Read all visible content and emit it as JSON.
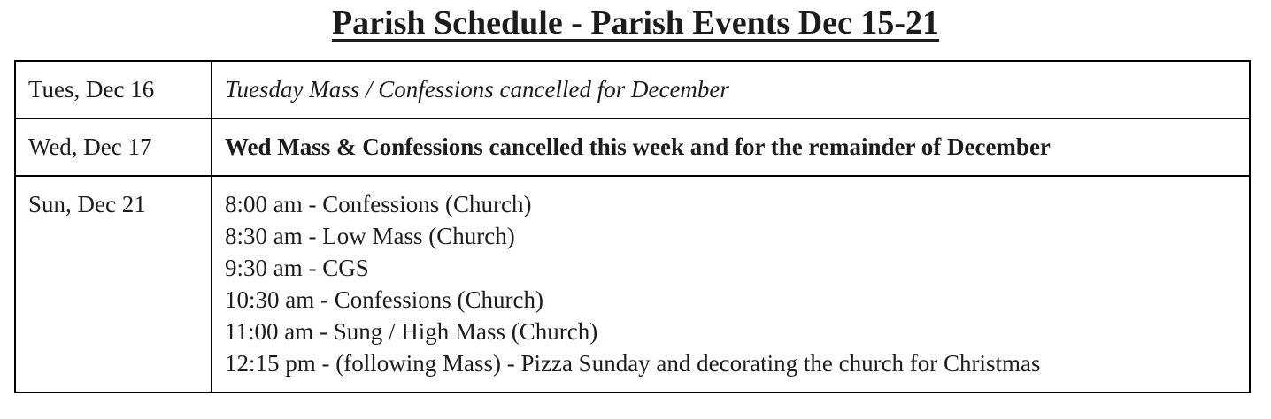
{
  "page": {
    "title": "Parish Schedule - Parish Events Dec 15-21"
  },
  "colors": {
    "text": "#1c1c1c",
    "table_border": "#000000",
    "background": "#ffffff"
  },
  "schedule": {
    "rows": [
      {
        "date": "Tues, Dec 16",
        "style": "italic",
        "lines": [
          "Tuesday Mass / Confessions cancelled for December"
        ]
      },
      {
        "date": "Wed, Dec 17",
        "style": "bold",
        "lines": [
          "Wed Mass & Confessions cancelled this week and for the remainder of December"
        ]
      },
      {
        "date": "Sun, Dec 21",
        "style": "normal",
        "lines": [
          "8:00 am - Confessions (Church)",
          "8:30 am - Low Mass (Church)",
          "9:30 am - CGS",
          "10:30 am - Confessions (Church)",
          "11:00 am - Sung / High Mass (Church)",
          "12:15 pm - (following Mass) - Pizza Sunday and decorating the church for Christmas"
        ]
      }
    ]
  }
}
